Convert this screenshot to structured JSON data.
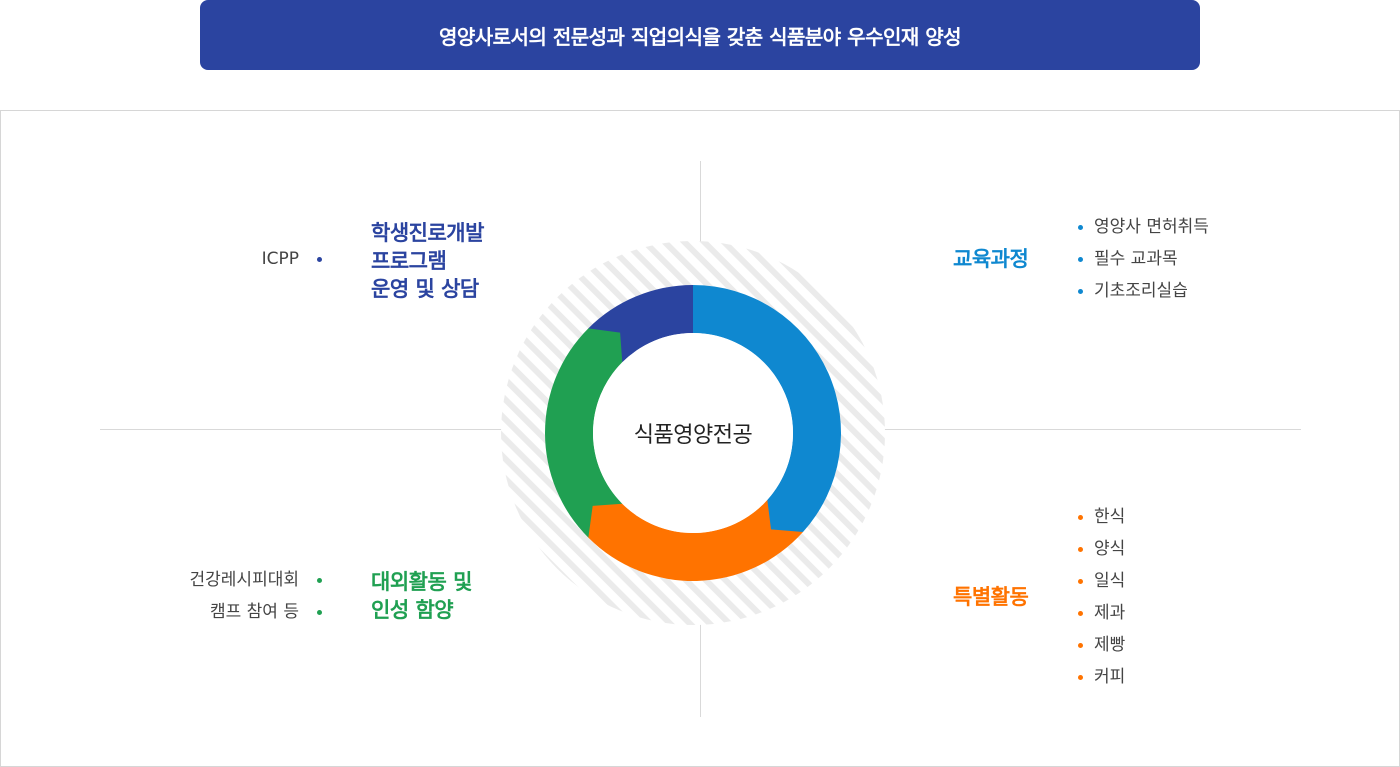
{
  "header": {
    "banner_text": "영양사로서의 전문성과 직업의식을 갖춘 식품분야 우수인재 양성"
  },
  "diagram": {
    "center_label": "식품영양전공",
    "colors": {
      "top_left": "#2b44a0",
      "top_right": "#0f88d0",
      "bottom_right": "#ff7300",
      "bottom_left": "#20a052"
    },
    "quadrants": {
      "top_left": {
        "title_lines": [
          "학생진로개발",
          "프로그램",
          "운영 및 상담"
        ],
        "items": [
          "ICPP"
        ]
      },
      "top_right": {
        "title_lines": [
          "교육과정"
        ],
        "items": [
          "영양사 면허취득",
          "필수 교과목",
          "기초조리실습"
        ]
      },
      "bottom_right": {
        "title_lines": [
          "특별활동"
        ],
        "items": [
          "한식",
          "양식",
          "일식",
          "제과",
          "제빵",
          "커피"
        ]
      },
      "bottom_left": {
        "title_lines": [
          "대외활동 및",
          "인성 함양"
        ],
        "items": [
          "건강레시피대회",
          "캠프 참여 등"
        ]
      }
    }
  }
}
